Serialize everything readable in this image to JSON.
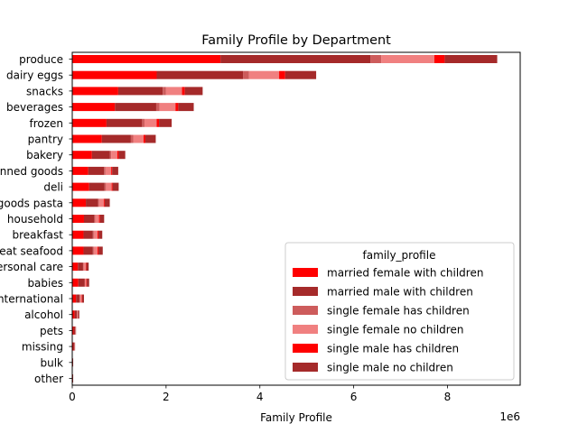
{
  "chart_data": {
    "type": "bar",
    "orientation": "horizontal",
    "stacked": true,
    "title": "Family Profile by Department",
    "xlabel": "Family Profile",
    "ylabel": "",
    "x_offset_label": "1e6",
    "xlim": [
      0,
      9.55
    ],
    "xticks": [
      "0",
      "2",
      "4",
      "6",
      "8"
    ],
    "legend_title": "family_profile",
    "legend_position": "lower right",
    "grid": false,
    "categories": [
      "produce",
      "dairy eggs",
      "snacks",
      "beverages",
      "frozen",
      "pantry",
      "bakery",
      "canned goods",
      "deli",
      "dry goods pasta",
      "household",
      "breakfast",
      "meat seafood",
      "personal care",
      "babies",
      "international",
      "alcohol",
      "pets",
      "missing",
      "bulk",
      "other"
    ],
    "series": [
      {
        "name": "married female with children",
        "color": "#ff0000",
        "values": [
          3.16,
          1.8,
          0.98,
          0.91,
          0.73,
          0.63,
          0.42,
          0.34,
          0.36,
          0.29,
          0.25,
          0.24,
          0.24,
          0.12,
          0.13,
          0.08,
          0.05,
          0.03,
          0.02,
          0.01,
          0.01
        ]
      },
      {
        "name": "married male with children",
        "color": "#a52a2a",
        "values": [
          3.2,
          1.84,
          0.95,
          0.88,
          0.76,
          0.62,
          0.38,
          0.34,
          0.33,
          0.26,
          0.22,
          0.2,
          0.2,
          0.11,
          0.13,
          0.08,
          0.05,
          0.03,
          0.02,
          0.01,
          0.01
        ]
      },
      {
        "name": "single female has children",
        "color": "#cd5c5c",
        "values": [
          0.23,
          0.13,
          0.07,
          0.07,
          0.05,
          0.05,
          0.03,
          0.03,
          0.03,
          0.02,
          0.02,
          0.02,
          0.02,
          0.01,
          0.01,
          0.01,
          0.0,
          0.0,
          0.0,
          0.0,
          0.0
        ]
      },
      {
        "name": "single female no children",
        "color": "#f08080",
        "values": [
          1.13,
          0.64,
          0.34,
          0.34,
          0.26,
          0.22,
          0.13,
          0.12,
          0.12,
          0.1,
          0.08,
          0.08,
          0.08,
          0.05,
          0.03,
          0.03,
          0.02,
          0.01,
          0.01,
          0.0,
          0.0
        ]
      },
      {
        "name": "single male has children",
        "color": "#ff0000",
        "values": [
          0.22,
          0.13,
          0.06,
          0.06,
          0.05,
          0.04,
          0.03,
          0.02,
          0.02,
          0.02,
          0.02,
          0.02,
          0.02,
          0.01,
          0.01,
          0.01,
          0.0,
          0.0,
          0.0,
          0.0,
          0.0
        ]
      },
      {
        "name": "single male no children",
        "color": "#a52a2a",
        "values": [
          1.12,
          0.66,
          0.38,
          0.33,
          0.27,
          0.22,
          0.14,
          0.13,
          0.13,
          0.11,
          0.09,
          0.08,
          0.09,
          0.05,
          0.05,
          0.04,
          0.03,
          0.01,
          0.01,
          0.0,
          0.0
        ]
      }
    ]
  }
}
